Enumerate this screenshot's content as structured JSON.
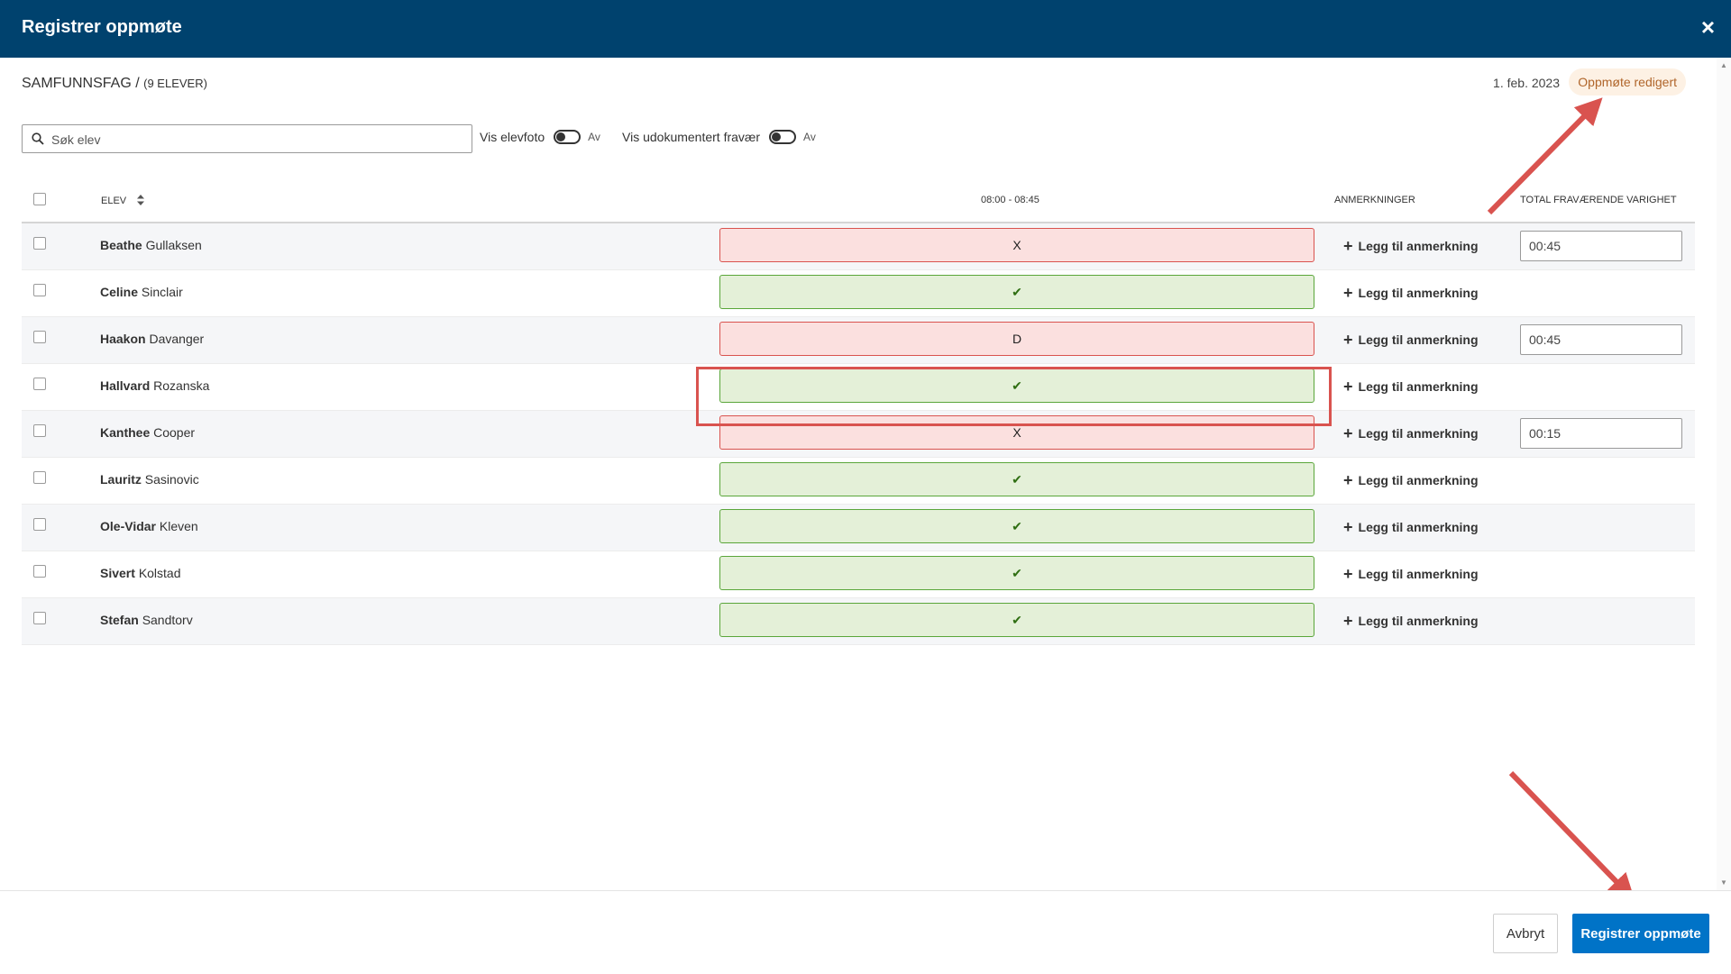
{
  "modal": {
    "title": "Registrer oppmøte",
    "close_label": "×"
  },
  "header": {
    "subject": "SAMFUNNSFAG / ",
    "count": "(9 ELEVER)",
    "date": "1. feb. 2023",
    "status_badge": "Oppmøte redigert"
  },
  "toolbar": {
    "search_placeholder": "Søk elev",
    "show_photo_label": "Vis elevfoto",
    "show_photo_state": "Av",
    "show_undocumented_label": "Vis udokumentert fravær",
    "show_undocumented_state": "Av"
  },
  "table": {
    "headers": {
      "student": "ELEV",
      "period": "08:00 - 08:45",
      "remarks": "ANMERKNINGER",
      "total_absence": "TOTAL FRAVÆRENDE VARIGHET"
    },
    "add_note_label": "Legg til anmerkning",
    "rows": [
      {
        "first": "Beathe",
        "last": "Gullaksen",
        "status": "X",
        "absent": true,
        "duration": "00:45"
      },
      {
        "first": "Celine",
        "last": "Sinclair",
        "status": "✔",
        "absent": false,
        "duration": ""
      },
      {
        "first": "Haakon",
        "last": "Davanger",
        "status": "D",
        "absent": true,
        "duration": "00:45"
      },
      {
        "first": "Hallvard",
        "last": "Rozanska",
        "status": "✔",
        "absent": false,
        "duration": ""
      },
      {
        "first": "Kanthee",
        "last": "Cooper",
        "status": "X",
        "absent": true,
        "duration": "00:15"
      },
      {
        "first": "Lauritz",
        "last": "Sasinovic",
        "status": "✔",
        "absent": false,
        "duration": ""
      },
      {
        "first": "Ole-Vidar",
        "last": "Kleven",
        "status": "✔",
        "absent": false,
        "duration": ""
      },
      {
        "first": "Sivert",
        "last": "Kolstad",
        "status": "✔",
        "absent": false,
        "duration": ""
      },
      {
        "first": "Stefan",
        "last": "Sandtorv",
        "status": "✔",
        "absent": false,
        "duration": ""
      }
    ]
  },
  "footer": {
    "cancel_label": "Avbryt",
    "submit_label": "Registrer oppmøte"
  },
  "colors": {
    "header_bg": "#00426e",
    "absent_bg": "#fbe0df",
    "present_bg": "#e4f0d8",
    "primary": "#0073c7",
    "annotation": "#d9534f"
  }
}
